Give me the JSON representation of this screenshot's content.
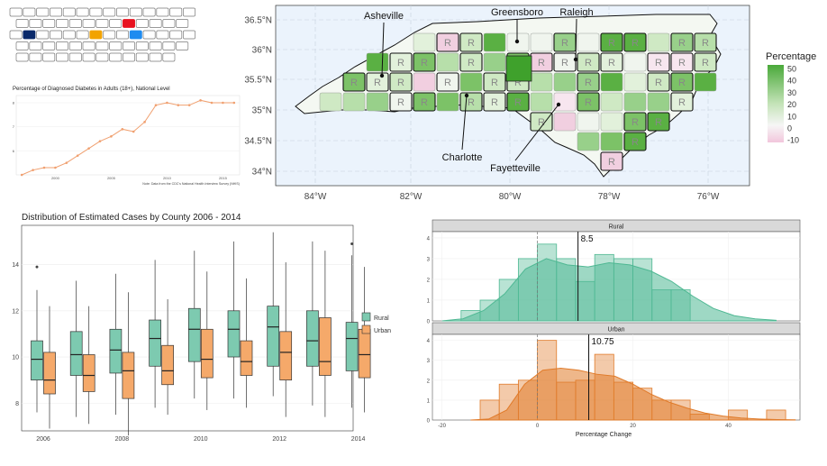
{
  "keyboard": {
    "rows": [
      [
        "k",
        "k",
        "k",
        "k",
        "k",
        "k",
        "k",
        "k",
        "k",
        "k",
        "k",
        "k",
        "k",
        "k"
      ],
      [
        "k",
        "k",
        "k",
        "k",
        "k",
        "k",
        "k",
        "k",
        "k",
        "k",
        "k",
        "k",
        "k"
      ],
      [
        "k",
        "k",
        "k",
        "k",
        "k",
        "k",
        "k",
        "k",
        "k",
        "k",
        "k",
        "k",
        "k",
        "k"
      ],
      [
        "k",
        "k",
        "k",
        "k",
        "k",
        "k",
        "k",
        "k",
        "k",
        "k",
        "k",
        "k",
        "k"
      ],
      [
        "k",
        "k",
        "k",
        "k",
        "k",
        "k",
        "k",
        "k",
        "k",
        "k",
        "k",
        "k"
      ]
    ],
    "highlighted_keys": [
      {
        "row": 1,
        "col": 8,
        "color": "#e8121f"
      },
      {
        "row": 2,
        "col": 1,
        "color": "#0a2a6b"
      },
      {
        "row": 2,
        "col": 6,
        "color": "#f2a300"
      },
      {
        "row": 2,
        "col": 9,
        "color": "#1f8cf0"
      }
    ]
  },
  "diabetes_chart": {
    "title": "Percentage of Diagnosed Diabetes in Adults (18+), National Level",
    "note": "Note: Data from the CDC's National Health Interview Survey (NHIS)",
    "xticks": [
      "2000",
      "2005",
      "2010",
      "2015"
    ],
    "yticks": [
      "6",
      "7",
      "8"
    ],
    "line_color": "#f0a070"
  },
  "chart_data": [
    {
      "type": "line",
      "title": "Percentage of Diagnosed Diabetes in Adults (18+), National Level",
      "x": [
        1997,
        1998,
        1999,
        2000,
        2001,
        2002,
        2003,
        2004,
        2005,
        2006,
        2007,
        2008,
        2009,
        2010,
        2011,
        2012,
        2013,
        2014,
        2015,
        2016
      ],
      "values": [
        5.0,
        5.2,
        5.3,
        5.3,
        5.5,
        5.8,
        6.1,
        6.4,
        6.6,
        6.9,
        6.8,
        7.2,
        7.9,
        8.0,
        7.9,
        7.9,
        8.1,
        8.0,
        8.0,
        8.0
      ],
      "xlim": [
        1996.5,
        2016.5
      ],
      "ylim": [
        5.0,
        8.3
      ]
    },
    {
      "type": "map",
      "title": "",
      "color_scale_title": "Percentage",
      "color_scale_ticks": [
        "50",
        "40",
        "30",
        "20",
        "10",
        "0",
        "-10"
      ],
      "lon_ticks": [
        "84°W",
        "82°W",
        "80°W",
        "78°W",
        "76°W"
      ],
      "lat_ticks": [
        "36.5°N",
        "36°N",
        "35.5°N",
        "35°N",
        "34.5°N",
        "34°N"
      ],
      "city_labels": [
        "Asheville",
        "Greensboro",
        "Raleigh",
        "Charlotte",
        "Fayetteville"
      ],
      "county_marker": "R"
    },
    {
      "type": "box",
      "title": "Distribution  of Estimated Cases by County 2006 - 2014",
      "xticks": [
        "2006",
        "2008",
        "2010",
        "2012",
        "2014"
      ],
      "yticks": [
        "8",
        "10",
        "12",
        "14"
      ],
      "ylim": [
        6.8,
        15.7
      ],
      "legend": [
        "Rural",
        "Urban"
      ],
      "legend_colors": [
        "#7dcab0",
        "#f5a96a"
      ],
      "years": [
        2006,
        2007,
        2008,
        2009,
        2010,
        2011,
        2012,
        2013,
        2014
      ],
      "rural": [
        {
          "min": 7.6,
          "q1": 9.0,
          "median": 9.9,
          "q3": 10.7,
          "max": 12.9,
          "outliers": [
            13.9
          ]
        },
        {
          "min": 7.4,
          "q1": 9.2,
          "median": 10.1,
          "q3": 11.1,
          "max": 13.3,
          "outliers": []
        },
        {
          "min": 7.5,
          "q1": 9.3,
          "median": 10.3,
          "q3": 11.2,
          "max": 13.6,
          "outliers": []
        },
        {
          "min": 7.8,
          "q1": 9.6,
          "median": 10.8,
          "q3": 11.6,
          "max": 14.2,
          "outliers": []
        },
        {
          "min": 8.2,
          "q1": 9.8,
          "median": 11.2,
          "q3": 12.1,
          "max": 14.6,
          "outliers": []
        },
        {
          "min": 8.2,
          "q1": 10.0,
          "median": 11.2,
          "q3": 12.0,
          "max": 15.0,
          "outliers": []
        },
        {
          "min": 8.3,
          "q1": 9.6,
          "median": 11.3,
          "q3": 12.2,
          "max": 15.4,
          "outliers": []
        },
        {
          "min": 7.9,
          "q1": 9.6,
          "median": 10.7,
          "q3": 12.0,
          "max": 15.0,
          "outliers": []
        },
        {
          "min": 7.8,
          "q1": 9.4,
          "median": 10.8,
          "q3": 11.5,
          "max": 14.4,
          "outliers": [
            14.9
          ]
        }
      ],
      "urban": [
        {
          "min": 6.9,
          "q1": 8.4,
          "median": 9.0,
          "q3": 10.2,
          "max": 12.2,
          "outliers": []
        },
        {
          "min": 7.1,
          "q1": 8.5,
          "median": 9.2,
          "q3": 10.1,
          "max": 12.2,
          "outliers": []
        },
        {
          "min": 6.6,
          "q1": 8.2,
          "median": 9.4,
          "q3": 10.2,
          "max": 12.8,
          "outliers": []
        },
        {
          "min": 7.5,
          "q1": 8.8,
          "median": 9.4,
          "q3": 10.5,
          "max": 12.5,
          "outliers": []
        },
        {
          "min": 7.7,
          "q1": 9.1,
          "median": 9.9,
          "q3": 11.2,
          "max": 13.7,
          "outliers": []
        },
        {
          "min": 7.8,
          "q1": 9.2,
          "median": 9.8,
          "q3": 10.7,
          "max": 13.4,
          "outliers": []
        },
        {
          "min": 7.4,
          "q1": 9.0,
          "median": 10.2,
          "q3": 11.1,
          "max": 14.1,
          "outliers": []
        },
        {
          "min": 7.4,
          "q1": 9.2,
          "median": 9.8,
          "q3": 11.7,
          "max": 14.6,
          "outliers": []
        },
        {
          "min": 7.6,
          "q1": 9.1,
          "median": 10.1,
          "q3": 11.2,
          "max": 13.9,
          "outliers": []
        }
      ]
    },
    {
      "type": "histogram",
      "xlabel": "Percentage Change",
      "xticks": [
        "-20",
        "0",
        "20",
        "40"
      ],
      "yticks": [
        "0",
        "1",
        "2",
        "3",
        "4"
      ],
      "xlim": [
        -22,
        55
      ],
      "ylim": [
        0,
        4.3
      ],
      "facets": [
        {
          "name": "Rural",
          "color": "#4fb893",
          "mean": 8.5,
          "mean_label": "8.5",
          "bin_edges": [
            -16,
            -12,
            -8,
            -4,
            0,
            4,
            8,
            12,
            16,
            20,
            24,
            28,
            32
          ],
          "counts": [
            0.5,
            1,
            2,
            3,
            3.7,
            3,
            1.9,
            3.2,
            3,
            3,
            1.5,
            1.5
          ],
          "density": [
            0,
            0.1,
            0.5,
            1.3,
            2.5,
            3.0,
            2.7,
            2.6,
            2.8,
            2.7,
            2.4,
            1.9,
            1.2,
            0.6,
            0.25,
            0.1,
            0.03
          ]
        },
        {
          "name": "Urban",
          "color": "#e07b2a",
          "mean": 10.75,
          "mean_label": "10.75",
          "bin_edges": [
            -12,
            -8,
            -4,
            0,
            4,
            8,
            12,
            16,
            20,
            24,
            28,
            32,
            36,
            40,
            44,
            48,
            52
          ],
          "counts": [
            1,
            1.8,
            2,
            4,
            1.9,
            2,
            3.3,
            1.9,
            1.6,
            1,
            1,
            0.3,
            0,
            0.5,
            0,
            0.5
          ],
          "density": [
            0,
            0.05,
            0.5,
            1.8,
            2.5,
            2.6,
            2.5,
            2.3,
            2.2,
            1.8,
            1.3,
            0.9,
            0.6,
            0.35,
            0.2,
            0.1,
            0.05,
            0.02,
            0.01
          ]
        }
      ]
    }
  ]
}
